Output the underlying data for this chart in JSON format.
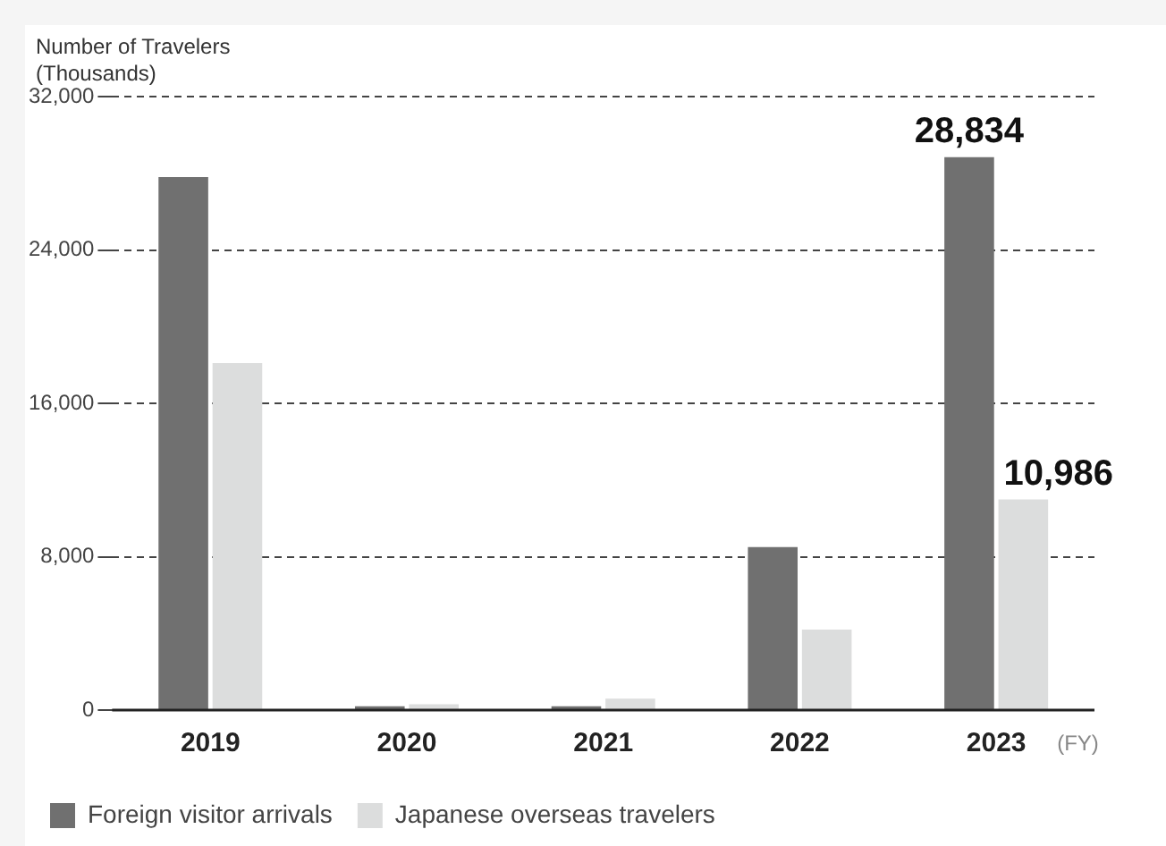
{
  "chart_data": {
    "type": "bar",
    "ylabel": "Number of Travelers\n(Thousands)",
    "xlabel": "(FY)",
    "categories": [
      "2019",
      "2020",
      "2021",
      "2022",
      "2023"
    ],
    "series": [
      {
        "name": "Foreign visitor arrivals",
        "color": "#707070",
        "values": [
          27800,
          200,
          200,
          8500,
          28834
        ],
        "value_labels": [
          null,
          null,
          null,
          null,
          "28,834"
        ]
      },
      {
        "name": "Japanese overseas travelers",
        "color": "#dcdddd",
        "values": [
          18100,
          300,
          600,
          4200,
          10986
        ],
        "value_labels": [
          null,
          null,
          null,
          null,
          "10,986"
        ]
      }
    ],
    "ylim": [
      0,
      32000
    ],
    "yticks": [
      {
        "value": 0,
        "label": "0"
      },
      {
        "value": 8000,
        "label": "8,000"
      },
      {
        "value": 16000,
        "label": "16,000"
      },
      {
        "value": 24000,
        "label": "24,000"
      },
      {
        "value": 32000,
        "label": "32,000"
      }
    ],
    "grid": "y",
    "legend": "bottom left"
  }
}
